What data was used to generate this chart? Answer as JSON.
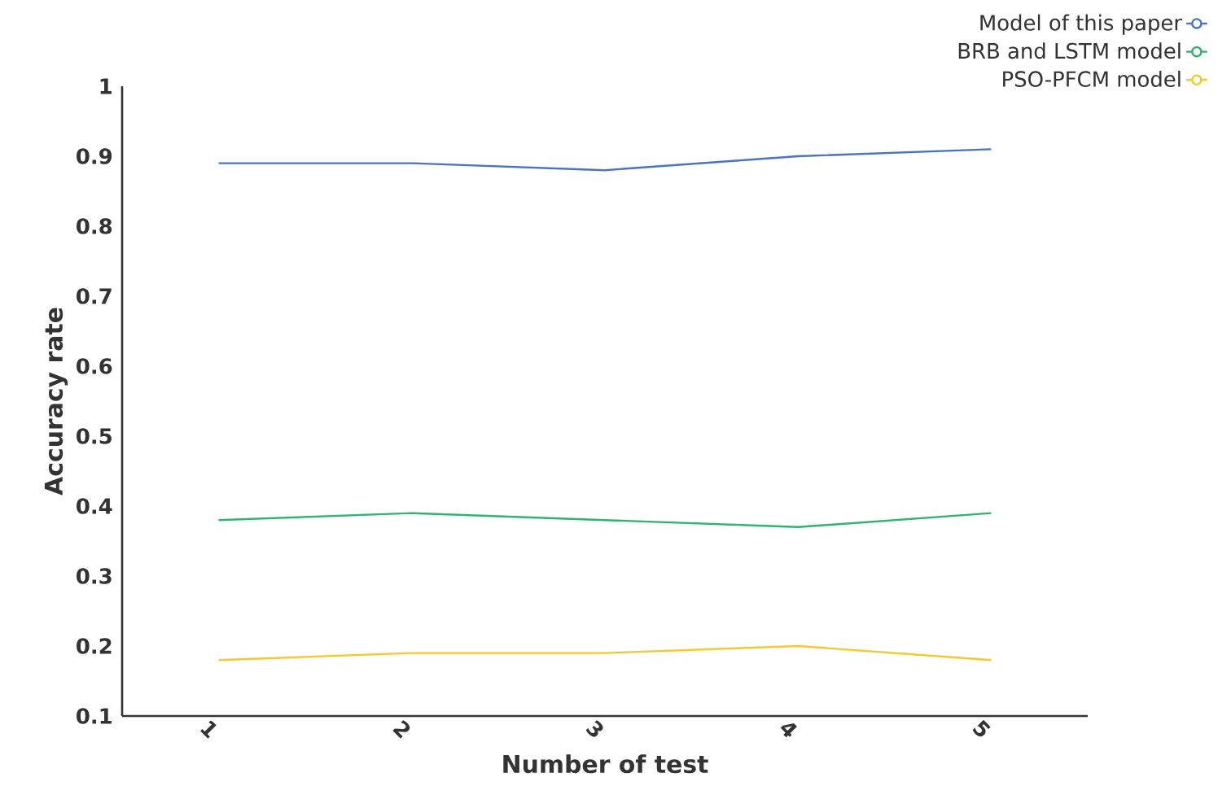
{
  "chart_data": {
    "type": "line",
    "xlabel": "Number of test",
    "ylabel": "Accuracy rate",
    "categories": [
      "1",
      "2",
      "3",
      "4",
      "5"
    ],
    "series": [
      {
        "name": "Model of this paper",
        "color": "#4a72c9",
        "values": [
          0.89,
          0.89,
          0.88,
          0.9,
          0.91
        ]
      },
      {
        "name": "BRB and LSTM model",
        "color": "#2fb470",
        "values": [
          0.38,
          0.39,
          0.38,
          0.37,
          0.39
        ]
      },
      {
        "name": "PSO-PFCM model",
        "color": "#f7c72c",
        "values": [
          0.18,
          0.19,
          0.19,
          0.2,
          0.18
        ]
      }
    ],
    "ylim": [
      0.1,
      1
    ],
    "yticks": [
      0.1,
      0.2,
      0.3,
      0.4,
      0.5,
      0.6,
      0.7,
      0.8,
      0.9,
      1
    ],
    "legend": "top right",
    "grid": false
  }
}
